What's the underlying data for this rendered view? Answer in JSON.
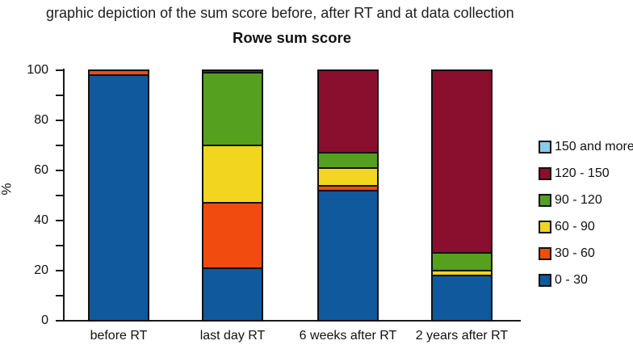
{
  "caption": "graphic depiction of the sum score before, after RT and at data collection",
  "chart_data": {
    "type": "bar",
    "stacked": true,
    "title": "Rowe sum score",
    "ylabel": "%",
    "xlabel": "",
    "ylim": [
      0,
      100
    ],
    "yticks_labeled": [
      0,
      20,
      40,
      60,
      80,
      100
    ],
    "ytick_minor_step": 10,
    "grid": false,
    "legend_position": "right",
    "legend_order_top_to_bottom": [
      "150 and more",
      "120 - 150",
      "90 - 120",
      "60 - 90",
      "30 - 60",
      "0 - 30"
    ],
    "categories": [
      "before RT",
      "last day RT",
      "6 weeks after RT",
      "2 years after RT"
    ],
    "series": [
      {
        "name": "0 - 30",
        "color": "#0f599c",
        "values": [
          98,
          21,
          52,
          18
        ]
      },
      {
        "name": "30 - 60",
        "color": "#f24b0f",
        "values": [
          2,
          26,
          2,
          0
        ]
      },
      {
        "name": "60 - 90",
        "color": "#f2d51e",
        "values": [
          0,
          23,
          7,
          2
        ]
      },
      {
        "name": "90 - 120",
        "color": "#55a01e",
        "values": [
          0,
          29,
          6,
          7
        ]
      },
      {
        "name": "120 - 150",
        "color": "#8a0e2d",
        "values": [
          0,
          1,
          33,
          73
        ]
      },
      {
        "name": "150 and more",
        "color": "#86cdec",
        "values": [
          0,
          0,
          0,
          0
        ]
      }
    ],
    "axis_color": "#1a1a1a",
    "bar_border_color": "#111111"
  }
}
